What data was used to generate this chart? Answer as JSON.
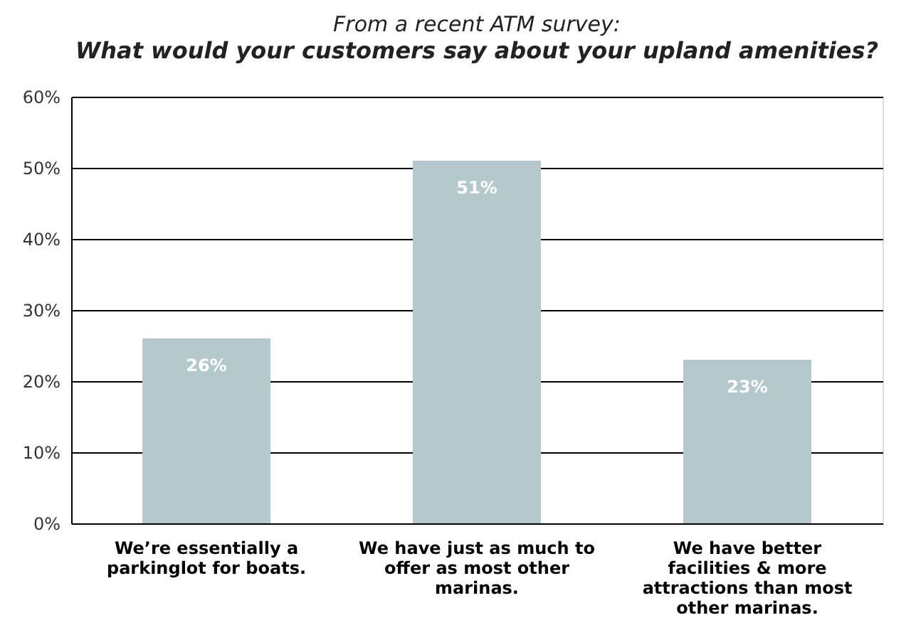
{
  "chart_data": {
    "type": "bar",
    "title": "From a recent ATM survey:",
    "subtitle": "What would your customers say about your upland amenities?",
    "categories": [
      "We’re essentially a parkinglot for boats.",
      "We have just as much to offer as most other marinas.",
      "We have better facilities & more attractions than most other marinas."
    ],
    "values": [
      26,
      51,
      23
    ],
    "value_labels": [
      "26%",
      "51%",
      "23%"
    ],
    "color": "#b3c9cd",
    "ylim": [
      0,
      60
    ],
    "yticks": [
      {
        "value": 0,
        "label": "0%"
      },
      {
        "value": 10,
        "label": "10%"
      },
      {
        "value": 20,
        "label": "20%"
      },
      {
        "value": 30,
        "label": "30%"
      },
      {
        "value": 40,
        "label": "40%"
      },
      {
        "value": 50,
        "label": "50%"
      },
      {
        "value": 60,
        "label": "60%"
      }
    ],
    "grid": "y"
  }
}
